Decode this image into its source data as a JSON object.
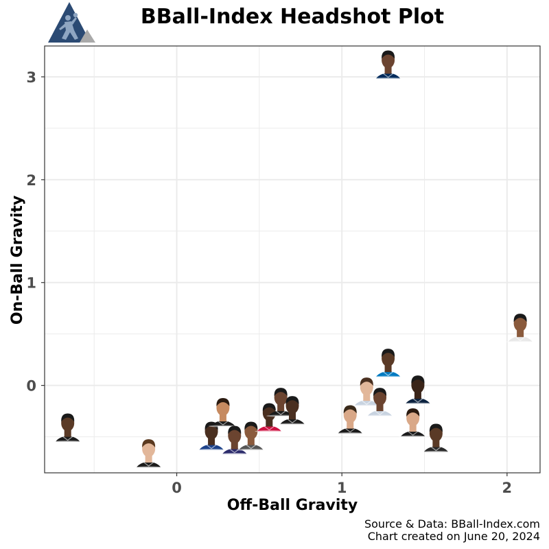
{
  "header": {
    "title": "BBall-Index Headshot Plot"
  },
  "caption": {
    "line1": "Source & Data: BBall-Index.com",
    "line2": "Chart created on June 20, 2024"
  },
  "colors": {
    "logo_blue": "#2b4a73",
    "logo_gray": "#a9a9a9",
    "gridline": "#ebebeb",
    "panel_border": "#333333",
    "skin_dark": "#5a3a26",
    "skin_medium": "#8a5a3c",
    "skin_light": "#e2b79a"
  },
  "icons": {
    "logo": "basketball-player-triangle-icon"
  },
  "chart_data": {
    "type": "scatter",
    "title": "BBall-Index Headshot Plot",
    "xlabel": "Off-Ball Gravity",
    "ylabel": "On-Ball Gravity",
    "xlim": [
      -0.8,
      2.2
    ],
    "ylim": [
      -0.85,
      3.3
    ],
    "x_ticks": [
      0,
      1,
      2
    ],
    "y_ticks": [
      0,
      1,
      2,
      3
    ],
    "x_tick_labels": [
      "0",
      "1",
      "2"
    ],
    "y_tick_labels": [
      "0",
      "1",
      "2",
      "3"
    ],
    "grid": true,
    "marker": "player headshot",
    "points": [
      {
        "x": -0.66,
        "y": -0.5,
        "jersey": "#1b1b1b",
        "skin": "#5a3a26",
        "hair": "#1a1a1a"
      },
      {
        "x": -0.17,
        "y": -0.75,
        "jersey": "#1b1b1b",
        "skin": "#e2b79a",
        "hair": "#5b3a20"
      },
      {
        "x": 0.21,
        "y": -0.58,
        "jersey": "#1d428a",
        "skin": "#4a2f20",
        "hair": "#1a1a1a"
      },
      {
        "x": 0.28,
        "y": -0.35,
        "jersey": "#1b1b1b",
        "skin": "#c68a60",
        "hair": "#2a1a10"
      },
      {
        "x": 0.35,
        "y": -0.62,
        "jersey": "#2b2b6b",
        "skin": "#6b4430",
        "hair": "#1a1a1a"
      },
      {
        "x": 0.45,
        "y": -0.58,
        "jersey": "#555555",
        "skin": "#8a5a3c",
        "hair": "#1a1a1a"
      },
      {
        "x": 0.56,
        "y": -0.4,
        "jersey": "#ce1141",
        "skin": "#4a2f20",
        "hair": "#1a1a1a"
      },
      {
        "x": 0.63,
        "y": -0.25,
        "jersey": "#1b1b1b",
        "skin": "#6b4430",
        "hair": "#1a1a1a"
      },
      {
        "x": 0.7,
        "y": -0.33,
        "jersey": "#1b1b1b",
        "skin": "#4a2f20",
        "hair": "#1a1a1a"
      },
      {
        "x": 1.05,
        "y": -0.42,
        "jersey": "#1b1b1b",
        "skin": "#d9a888",
        "hair": "#3a2a1a"
      },
      {
        "x": 1.15,
        "y": -0.15,
        "jersey": "#c8d3e0",
        "skin": "#e2b79a",
        "hair": "#4a3020"
      },
      {
        "x": 1.23,
        "y": -0.25,
        "jersey": "#c8d3e0",
        "skin": "#6b4430",
        "hair": "#1a1a1a"
      },
      {
        "x": 1.28,
        "y": 0.13,
        "jersey": "#007ac1",
        "skin": "#5a3a26",
        "hair": "#1a1a1a"
      },
      {
        "x": 1.28,
        "y": 3.03,
        "jersey": "#002b5c",
        "skin": "#6b4430",
        "hair": "#1a1a1a"
      },
      {
        "x": 1.43,
        "y": -0.45,
        "jersey": "#1b1b1b",
        "skin": "#d9a888",
        "hair": "#2a1a10"
      },
      {
        "x": 1.46,
        "y": -0.13,
        "jersey": "#0c2340",
        "skin": "#3a2418",
        "hair": "#1a1a1a"
      },
      {
        "x": 1.57,
        "y": -0.6,
        "jersey": "#2a2a2a",
        "skin": "#5a3a26",
        "hair": "#1a1a1a"
      },
      {
        "x": 2.08,
        "y": 0.47,
        "jersey": "#e8e8e8",
        "skin": "#8a5a3c",
        "hair": "#1a1a1a"
      }
    ]
  }
}
